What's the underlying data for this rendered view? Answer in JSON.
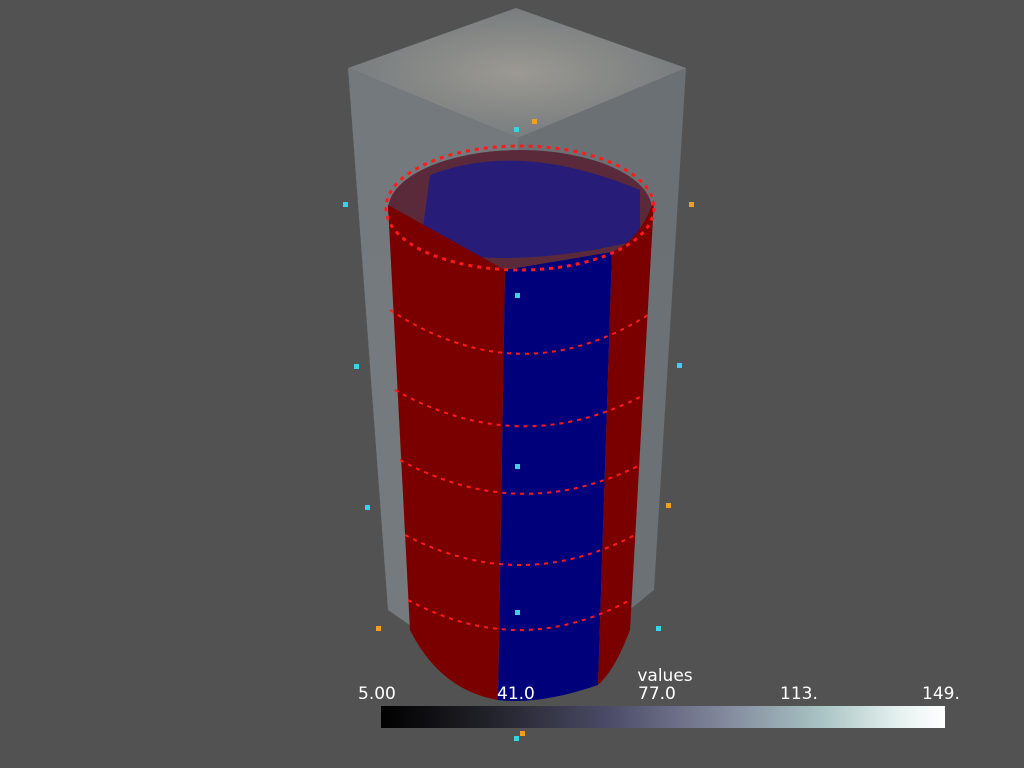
{
  "scene": {
    "background_color": "#525252",
    "box_color": "#9aa7ad",
    "shell_red": "#7a0000",
    "shell_blue": "#00007a",
    "edge_red": "#ff1a1a",
    "edge_blue": "#1a1aff",
    "point_cyan": "#37d3e6",
    "point_orange": "#f0a020"
  },
  "scalar_bar": {
    "title": "values",
    "ticks": [
      "5.00",
      "41.0",
      "77.0",
      "113.",
      "149."
    ],
    "colors": [
      "#000000",
      "#4a4a66",
      "#a9c3c3",
      "#ffffff"
    ]
  }
}
